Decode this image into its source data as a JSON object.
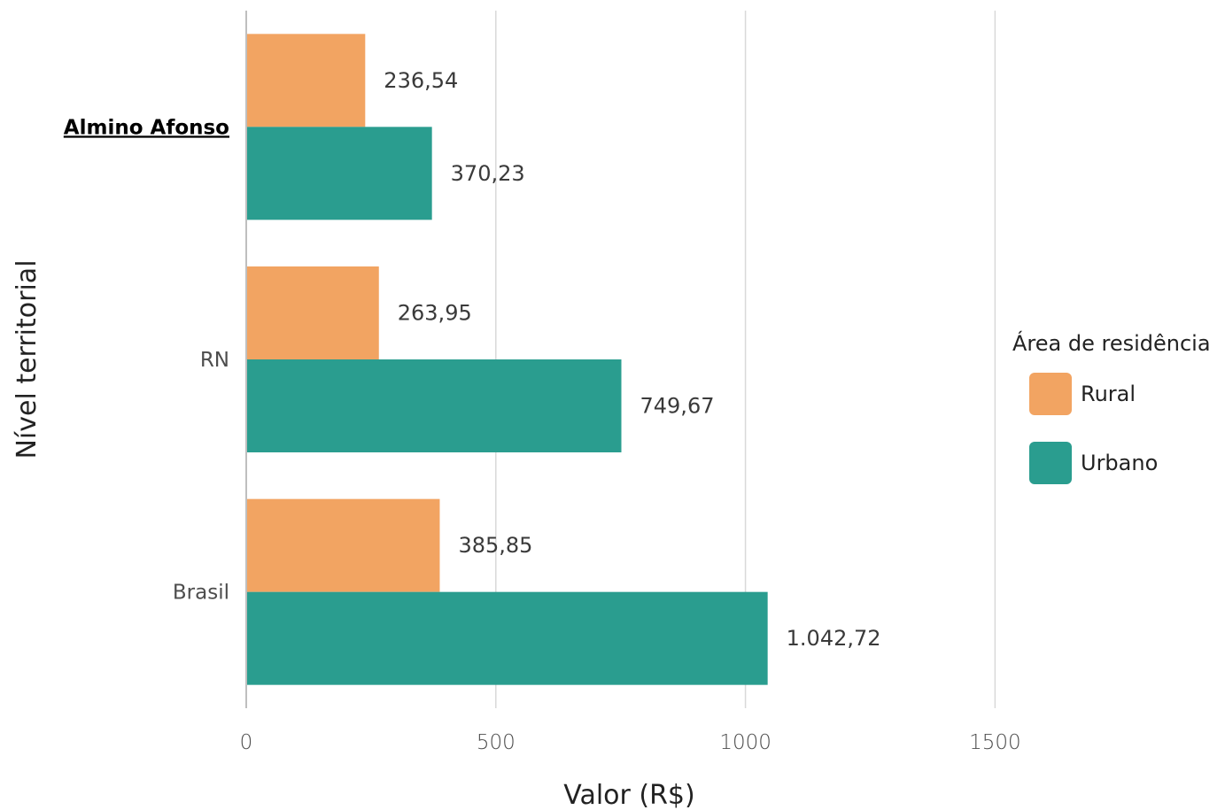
{
  "chart_data": {
    "type": "bar",
    "orientation": "horizontal",
    "categories": [
      "Almino Afonso",
      "RN",
      "Brasil"
    ],
    "highlight_category": "Almino Afonso",
    "series": [
      {
        "name": "Rural",
        "color": "#F2A462",
        "values": [
          236.54,
          263.95,
          385.85
        ],
        "labels": [
          "236,54",
          "263,95",
          "385,85"
        ]
      },
      {
        "name": "Urbano",
        "color": "#2A9D8F",
        "values": [
          370.23,
          749.67,
          1042.72
        ],
        "labels": [
          "370,23",
          "749,67",
          "1.042,72"
        ]
      }
    ],
    "xlabel": "Valor (R$)",
    "ylabel": "Nível territorial",
    "xlim": [
      0,
      1950
    ],
    "xticks": [
      0,
      500,
      1000,
      1500
    ],
    "xtick_labels": [
      "0",
      "500",
      "1000",
      "1500"
    ],
    "grid": "vertical",
    "legend": {
      "title": "Área de residência",
      "position": "right"
    }
  }
}
